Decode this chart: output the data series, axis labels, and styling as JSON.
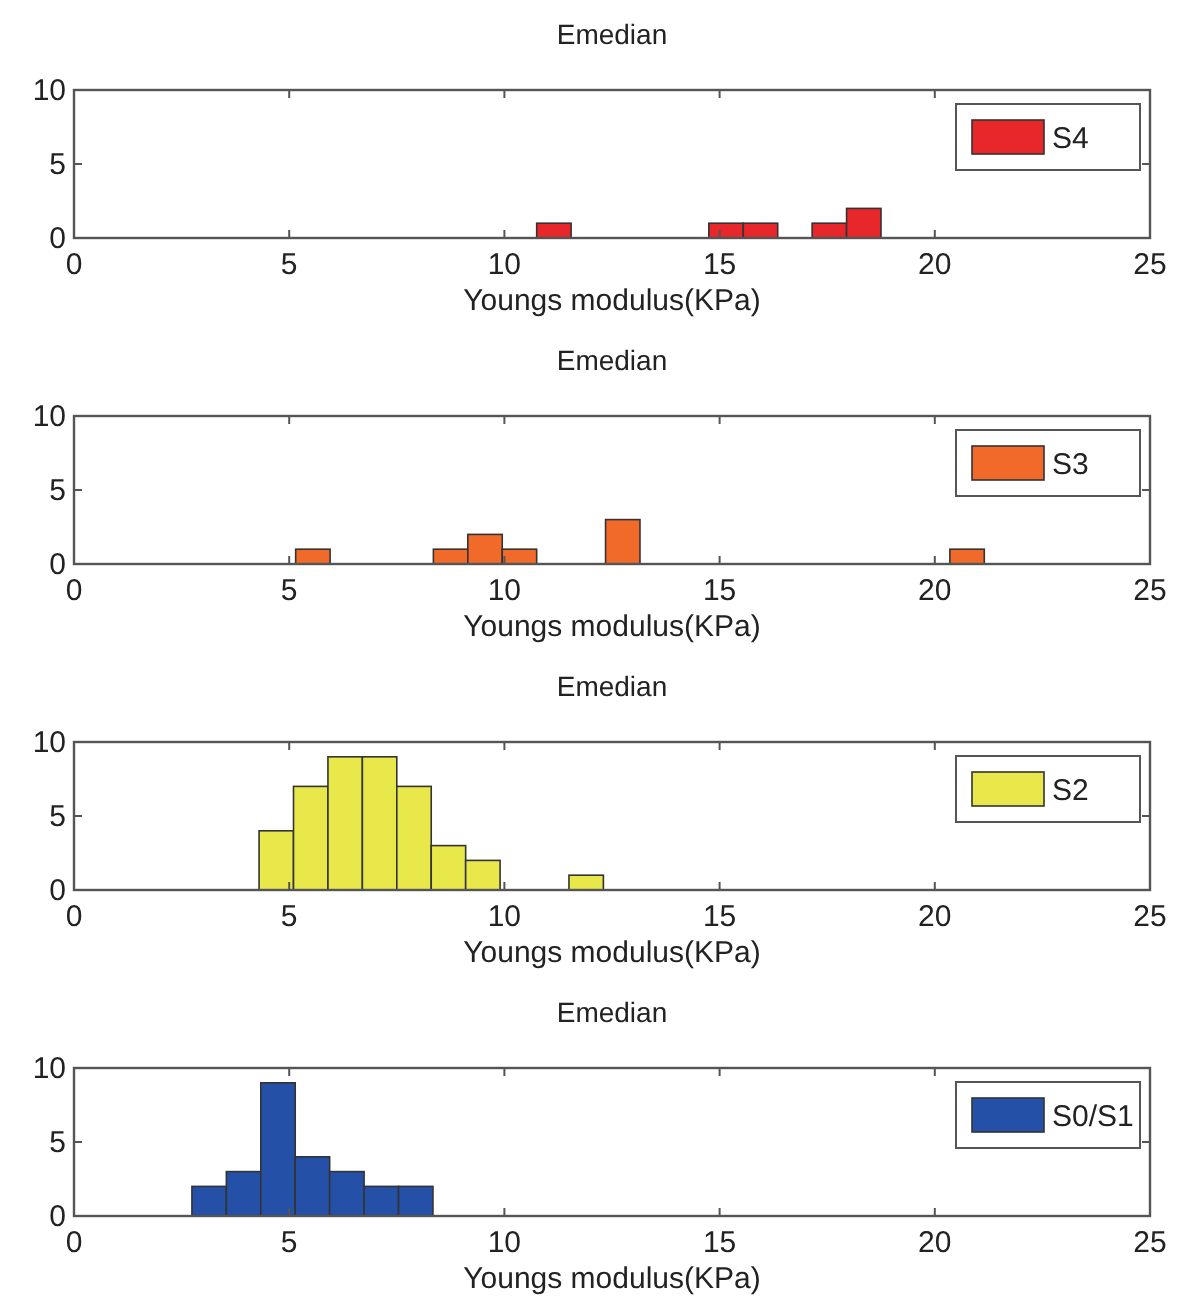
{
  "chart_data": [
    {
      "type": "histogram",
      "title": "Emedian",
      "xlabel": "Youngs modulus(KPa)",
      "bins": [
        10.75,
        11.55,
        12.35,
        13.15,
        13.95,
        14.75,
        15.55,
        16.35,
        17.15,
        17.95,
        18.75
      ],
      "series": [
        {
          "name": "S4",
          "color": "#e8272a",
          "values": [
            1,
            0,
            0,
            0,
            0,
            1,
            1,
            0,
            1,
            2
          ]
        }
      ],
      "xlim": [
        0,
        25
      ],
      "xticks": [
        0,
        5,
        10,
        15,
        20,
        25
      ],
      "ylim": [
        0,
        10
      ],
      "yticks": [
        0,
        5,
        10
      ],
      "legend": "top right",
      "grid": false
    },
    {
      "type": "histogram",
      "title": "Emedian",
      "xlabel": "Youngs modulus(KPa)",
      "bins": [
        5.15,
        5.95,
        6.75,
        7.55,
        8.35,
        9.15,
        9.95,
        10.75,
        11.55,
        12.35,
        13.15,
        13.95,
        14.75,
        15.55,
        16.35,
        17.15,
        17.95,
        18.75,
        19.55,
        20.35,
        21.15
      ],
      "series": [
        {
          "name": "S3",
          "color": "#f26a2a",
          "values": [
            1,
            0,
            0,
            0,
            1,
            2,
            1,
            0,
            0,
            3,
            0,
            0,
            0,
            0,
            0,
            0,
            0,
            0,
            0,
            1
          ]
        }
      ],
      "xlim": [
        0,
        25
      ],
      "xticks": [
        0,
        5,
        10,
        15,
        20,
        25
      ],
      "ylim": [
        0,
        10
      ],
      "yticks": [
        0,
        5,
        10
      ],
      "legend": "top right",
      "grid": false
    },
    {
      "type": "histogram",
      "title": "Emedian",
      "xlabel": "Youngs modulus(KPa)",
      "bins": [
        4.3,
        5.1,
        5.9,
        6.7,
        7.5,
        8.3,
        9.1,
        9.9,
        10.7,
        11.5,
        12.3
      ],
      "series": [
        {
          "name": "S2",
          "color": "#e8e84a",
          "values": [
            4,
            7,
            9,
            9,
            7,
            3,
            2,
            0,
            0,
            1
          ]
        }
      ],
      "xlim": [
        0,
        25
      ],
      "xticks": [
        0,
        5,
        10,
        15,
        20,
        25
      ],
      "ylim": [
        0,
        10
      ],
      "yticks": [
        0,
        5,
        10
      ],
      "legend": "top right",
      "grid": false
    },
    {
      "type": "histogram",
      "title": "Emedian",
      "xlabel": "Youngs modulus(KPa)",
      "bins": [
        2.74,
        3.54,
        4.34,
        5.14,
        5.94,
        6.74,
        7.54,
        8.34
      ],
      "series": [
        {
          "name": "S0/S1",
          "color": "#2450a8",
          "values": [
            2,
            3,
            9,
            4,
            3,
            2,
            2
          ]
        }
      ],
      "xlim": [
        0,
        25
      ],
      "xticks": [
        0,
        5,
        10,
        15,
        20,
        25
      ],
      "ylim": [
        0,
        10
      ],
      "yticks": [
        0,
        5,
        10
      ],
      "legend": "top right",
      "grid": false
    }
  ]
}
